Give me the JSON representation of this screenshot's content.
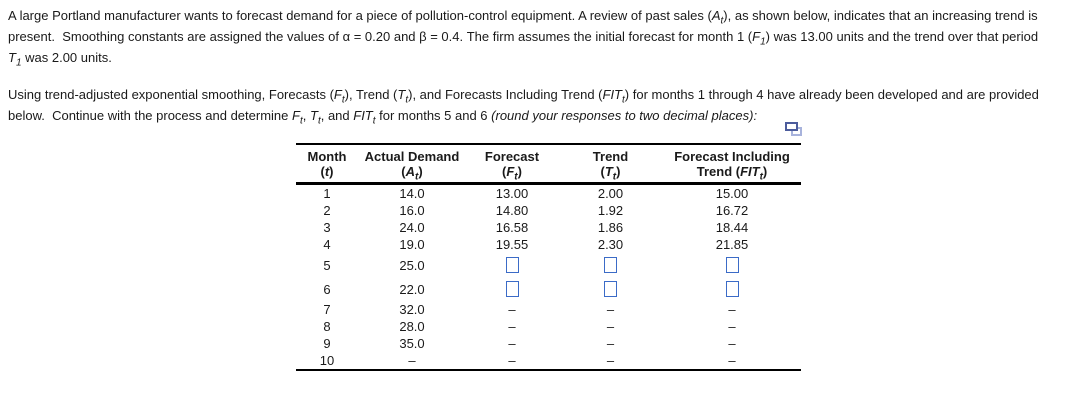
{
  "intro": {
    "p1": [
      {
        "t": "A large Portland manufacturer wants to forecast demand for a piece of pollution-control equipment. A review of past sales ("
      },
      {
        "t": "A",
        "s": "i"
      },
      {
        "t": "t",
        "s": "sub"
      },
      {
        "t": "), as shown below, indicates that an increasing trend is"
      },
      {
        "br": true
      },
      {
        "t": "present.  Smoothing constants are assigned the values of α = 0.20 and β = 0.4. The firm assumes the initial forecast for month 1 ("
      },
      {
        "t": "F",
        "s": "i"
      },
      {
        "t": "1",
        "s": "sub"
      },
      {
        "t": ") was 13.00 units and the trend over that period"
      },
      {
        "br": true
      },
      {
        "t": "T",
        "s": "i"
      },
      {
        "t": "1",
        "s": "sub"
      },
      {
        "t": " was 2.00 units."
      }
    ],
    "p2": [
      {
        "t": "Using trend-adjusted exponential smoothing, Forecasts ("
      },
      {
        "t": "F",
        "s": "i"
      },
      {
        "t": "t",
        "s": "sub"
      },
      {
        "t": "), Trend ("
      },
      {
        "t": "T",
        "s": "i"
      },
      {
        "t": "t",
        "s": "sub"
      },
      {
        "t": "), and Forecasts Including Trend ("
      },
      {
        "t": "FIT",
        "s": "i"
      },
      {
        "t": "t",
        "s": "sub"
      },
      {
        "t": ") for months 1 through 4 have already been developed and are provided"
      },
      {
        "br": true
      },
      {
        "t": "below.  Continue with the process and determine "
      },
      {
        "t": "F",
        "s": "i"
      },
      {
        "t": "t",
        "s": "sub"
      },
      {
        "t": ", "
      },
      {
        "t": "T",
        "s": "i"
      },
      {
        "t": "t",
        "s": "sub"
      },
      {
        "t": ", and "
      },
      {
        "t": "FIT",
        "s": "i"
      },
      {
        "t": "t",
        "s": "sub"
      },
      {
        "t": " for months 5 and 6 "
      },
      {
        "t": "(round your responses to two decimal places):",
        "s": "i"
      }
    ]
  },
  "icons": {
    "table_popout": "popout-copy-icon"
  },
  "table": {
    "headers": [
      {
        "line1": "Month",
        "line2": [
          {
            "t": "("
          },
          {
            "t": "t",
            "s": "i"
          },
          {
            "t": ")"
          }
        ]
      },
      {
        "line1": "Actual Demand",
        "line2": [
          {
            "t": "("
          },
          {
            "t": "A",
            "s": "i"
          },
          {
            "t": "t",
            "s": "sub"
          },
          {
            "t": ")"
          }
        ]
      },
      {
        "line1": "Forecast",
        "line2": [
          {
            "t": "("
          },
          {
            "t": "F",
            "s": "i"
          },
          {
            "t": "t",
            "s": "sub"
          },
          {
            "t": ")"
          }
        ]
      },
      {
        "line1": "Trend",
        "line2": [
          {
            "t": "("
          },
          {
            "t": "T",
            "s": "i"
          },
          {
            "t": "t",
            "s": "sub"
          },
          {
            "t": ")"
          }
        ]
      },
      {
        "line1": "Forecast Including",
        "line2": [
          {
            "t": "Trend ("
          },
          {
            "t": "FIT",
            "s": "i"
          },
          {
            "t": "t",
            "s": "sub"
          },
          {
            "t": ")"
          }
        ]
      }
    ],
    "rows": [
      {
        "cells": [
          {
            "v": "1"
          },
          {
            "v": "14.0"
          },
          {
            "v": "13.00"
          },
          {
            "v": "2.00"
          },
          {
            "v": "15.00"
          }
        ]
      },
      {
        "cells": [
          {
            "v": "2"
          },
          {
            "v": "16.0"
          },
          {
            "v": "14.80"
          },
          {
            "v": "1.92"
          },
          {
            "v": "16.72"
          }
        ]
      },
      {
        "cells": [
          {
            "v": "3"
          },
          {
            "v": "24.0"
          },
          {
            "v": "16.58"
          },
          {
            "v": "1.86"
          },
          {
            "v": "18.44"
          }
        ]
      },
      {
        "cells": [
          {
            "v": "4"
          },
          {
            "v": "19.0"
          },
          {
            "v": "19.55"
          },
          {
            "v": "2.30"
          },
          {
            "v": "21.85"
          }
        ]
      },
      {
        "cells": [
          {
            "v": "5"
          },
          {
            "v": "25.0"
          },
          {
            "input": true
          },
          {
            "input": true
          },
          {
            "input": true
          }
        ]
      },
      {
        "cells": [
          {
            "v": "6"
          },
          {
            "v": "22.0"
          },
          {
            "input": true
          },
          {
            "input": true
          },
          {
            "input": true
          }
        ]
      },
      {
        "cells": [
          {
            "v": "7"
          },
          {
            "v": "32.0"
          },
          {
            "v": "–"
          },
          {
            "v": "–"
          },
          {
            "v": "–"
          }
        ]
      },
      {
        "cells": [
          {
            "v": "8"
          },
          {
            "v": "28.0"
          },
          {
            "v": "–"
          },
          {
            "v": "–"
          },
          {
            "v": "–"
          }
        ]
      },
      {
        "cells": [
          {
            "v": "9"
          },
          {
            "v": "35.0"
          },
          {
            "v": "–"
          },
          {
            "v": "–"
          },
          {
            "v": "–"
          }
        ]
      },
      {
        "cells": [
          {
            "v": "10"
          },
          {
            "v": "–"
          },
          {
            "v": "–"
          },
          {
            "v": "–"
          },
          {
            "v": "–"
          }
        ]
      }
    ],
    "input_value": "",
    "input_count": 6
  },
  "colors": {
    "text": "#1a1a1a",
    "table_border": "#000000",
    "input_border": "#3b6bc7",
    "icon_dark": "#4c5c9c",
    "icon_light": "#a8b3dc"
  }
}
